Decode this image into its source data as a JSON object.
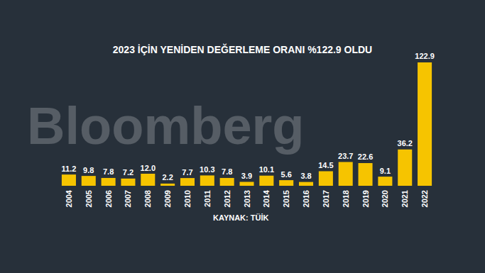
{
  "chart_data": {
    "type": "bar",
    "title": "2023 İÇİN YENİDEN DEĞERLEME ORANI %122.9 OLDU",
    "source": "KAYNAK: TÜİK",
    "watermark": "Bloomberg",
    "categories": [
      "2004",
      "2005",
      "2006",
      "2007",
      "2008",
      "2009",
      "2010",
      "2011",
      "2012",
      "2013",
      "2014",
      "2015",
      "2016",
      "2017",
      "2018",
      "2019",
      "2020",
      "2021",
      "2022"
    ],
    "values": [
      11.2,
      9.8,
      7.8,
      7.2,
      12.0,
      2.2,
      7.7,
      10.3,
      7.8,
      3.9,
      10.1,
      5.6,
      3.8,
      14.5,
      23.7,
      22.6,
      9.1,
      36.2,
      122.9
    ],
    "value_labels": [
      "11.2",
      "9.8",
      "7.8",
      "7.2",
      "12.0",
      "2.2",
      "7.7",
      "10.3",
      "7.8",
      "3.9",
      "10.1",
      "5.6",
      "3.8",
      "14.5",
      "23.7",
      "22.6",
      "9.1",
      "36.2",
      "122.9"
    ],
    "color": "#f6c400",
    "ylim": [
      0,
      125
    ],
    "grid": false,
    "data_labels": true,
    "tick_labels": "x"
  }
}
